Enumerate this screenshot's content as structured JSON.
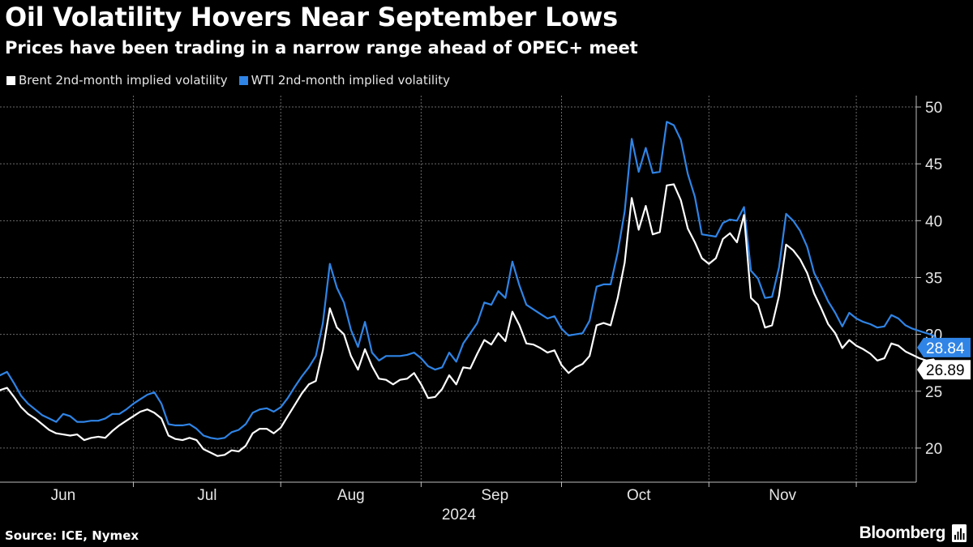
{
  "title": "Oil Volatility Hovers Near September Lows",
  "subtitle": "Prices have been trading in a narrow range ahead of OPEC+ meet",
  "source": "Source: ICE, Nymex",
  "brand": "Bloomberg",
  "colors": {
    "background": "#000000",
    "brent": "#ffffff",
    "wti": "#2f84e6",
    "grid": "#6a6a6a",
    "text": "#ffffff"
  },
  "chart_data": {
    "type": "line",
    "title": "Oil Volatility Hovers Near September Lows",
    "subtitle": "Prices have been trading in a narrow range ahead of OPEC+ meet",
    "xlabel": "2024",
    "ylabel": "",
    "x_unit": "trading day (0 = May 22, 2024)",
    "xlim": [
      0,
      128
    ],
    "ylim": [
      17,
      51
    ],
    "yticks": [
      20,
      25,
      30,
      35,
      40,
      45,
      50
    ],
    "year_label": "2024",
    "month_labels": [
      {
        "label": "Jun",
        "center": 9
      },
      {
        "label": "Jul",
        "center": 29.5
      },
      {
        "label": "Aug",
        "center": 50
      },
      {
        "label": "Sep",
        "center": 70.5
      },
      {
        "label": "Oct",
        "center": 91
      },
      {
        "label": "Nov",
        "center": 111.5
      }
    ],
    "month_separators": [
      19,
      40,
      60,
      80,
      101,
      122
    ],
    "series": [
      {
        "name": "Brent 2nd-month implied volatility",
        "color": "#ffffff",
        "last_label": "26.89",
        "values": [
          25.1,
          25.3,
          24.5,
          23.6,
          23.0,
          22.6,
          22.1,
          21.6,
          21.3,
          21.2,
          21.1,
          21.2,
          20.7,
          20.9,
          21.0,
          20.9,
          21.5,
          22.0,
          22.4,
          22.8,
          23.2,
          23.4,
          23.1,
          22.6,
          21.1,
          20.8,
          20.7,
          20.9,
          20.7,
          19.9,
          19.6,
          19.3,
          19.4,
          19.8,
          19.7,
          20.2,
          21.3,
          21.7,
          21.7,
          21.3,
          21.8,
          22.8,
          23.8,
          24.8,
          25.6,
          25.9,
          28.6,
          32.3,
          30.6,
          30.0,
          28.1,
          26.9,
          28.7,
          27.2,
          26.1,
          26.0,
          25.6,
          26.0,
          26.1,
          26.6,
          25.6,
          24.4,
          24.5,
          25.2,
          26.4,
          25.6,
          27.1,
          27.0,
          28.3,
          29.5,
          29.1,
          30.1,
          29.4,
          32.0,
          30.8,
          29.2,
          29.1,
          28.8,
          28.4,
          28.6,
          27.3,
          26.6,
          27.1,
          27.4,
          28.1,
          30.8,
          31.0,
          30.8,
          33.2,
          36.3,
          42.0,
          39.2,
          41.3,
          38.8,
          39.0,
          43.1,
          43.2,
          41.8,
          39.3,
          38.1,
          36.7,
          36.2,
          36.7,
          38.4,
          38.9,
          38.1,
          40.5,
          33.2,
          32.6,
          30.6,
          30.8,
          33.4,
          37.9,
          37.4,
          36.6,
          35.4,
          33.6,
          32.3,
          30.9,
          30.1,
          28.8,
          29.5,
          29.0,
          28.7,
          28.3,
          27.7,
          27.9,
          29.2,
          29.0,
          28.5,
          28.2,
          27.9,
          27.7,
          27.8,
          26.89
        ]
      },
      {
        "name": "WTI 2nd-month implied volatility",
        "color": "#2f84e6",
        "last_label": "28.84",
        "values": [
          26.4,
          26.7,
          25.7,
          24.6,
          23.9,
          23.4,
          22.9,
          22.6,
          22.3,
          23.0,
          22.8,
          22.3,
          22.3,
          22.4,
          22.4,
          22.6,
          23.0,
          23.0,
          23.4,
          23.9,
          24.3,
          24.7,
          24.9,
          23.9,
          22.1,
          22.0,
          22.0,
          22.1,
          21.7,
          21.1,
          20.9,
          20.8,
          20.9,
          21.4,
          21.6,
          22.1,
          23.1,
          23.4,
          23.5,
          23.2,
          23.6,
          24.4,
          25.4,
          26.3,
          27.1,
          28.1,
          31.0,
          36.2,
          34.1,
          32.8,
          30.4,
          28.9,
          31.1,
          28.4,
          27.7,
          28.1,
          28.1,
          28.1,
          28.2,
          28.4,
          27.9,
          27.2,
          26.9,
          27.1,
          28.4,
          27.6,
          29.2,
          30.1,
          31.0,
          32.8,
          32.6,
          33.8,
          33.2,
          36.4,
          34.3,
          32.6,
          32.2,
          31.8,
          31.4,
          31.6,
          30.5,
          29.9,
          30.0,
          30.1,
          31.2,
          34.2,
          34.4,
          34.4,
          37.2,
          40.8,
          47.2,
          44.3,
          46.4,
          44.2,
          44.3,
          48.7,
          48.4,
          47.1,
          44.1,
          42.1,
          38.8,
          38.7,
          38.6,
          39.8,
          40.1,
          40.0,
          41.2,
          35.6,
          34.9,
          33.2,
          33.3,
          35.9,
          40.6,
          40.0,
          39.1,
          37.7,
          35.4,
          34.2,
          32.9,
          31.9,
          30.7,
          31.9,
          31.4,
          31.1,
          30.9,
          30.6,
          30.7,
          31.7,
          31.4,
          30.8,
          30.5,
          30.3,
          30.1,
          29.9,
          28.84
        ]
      }
    ]
  }
}
